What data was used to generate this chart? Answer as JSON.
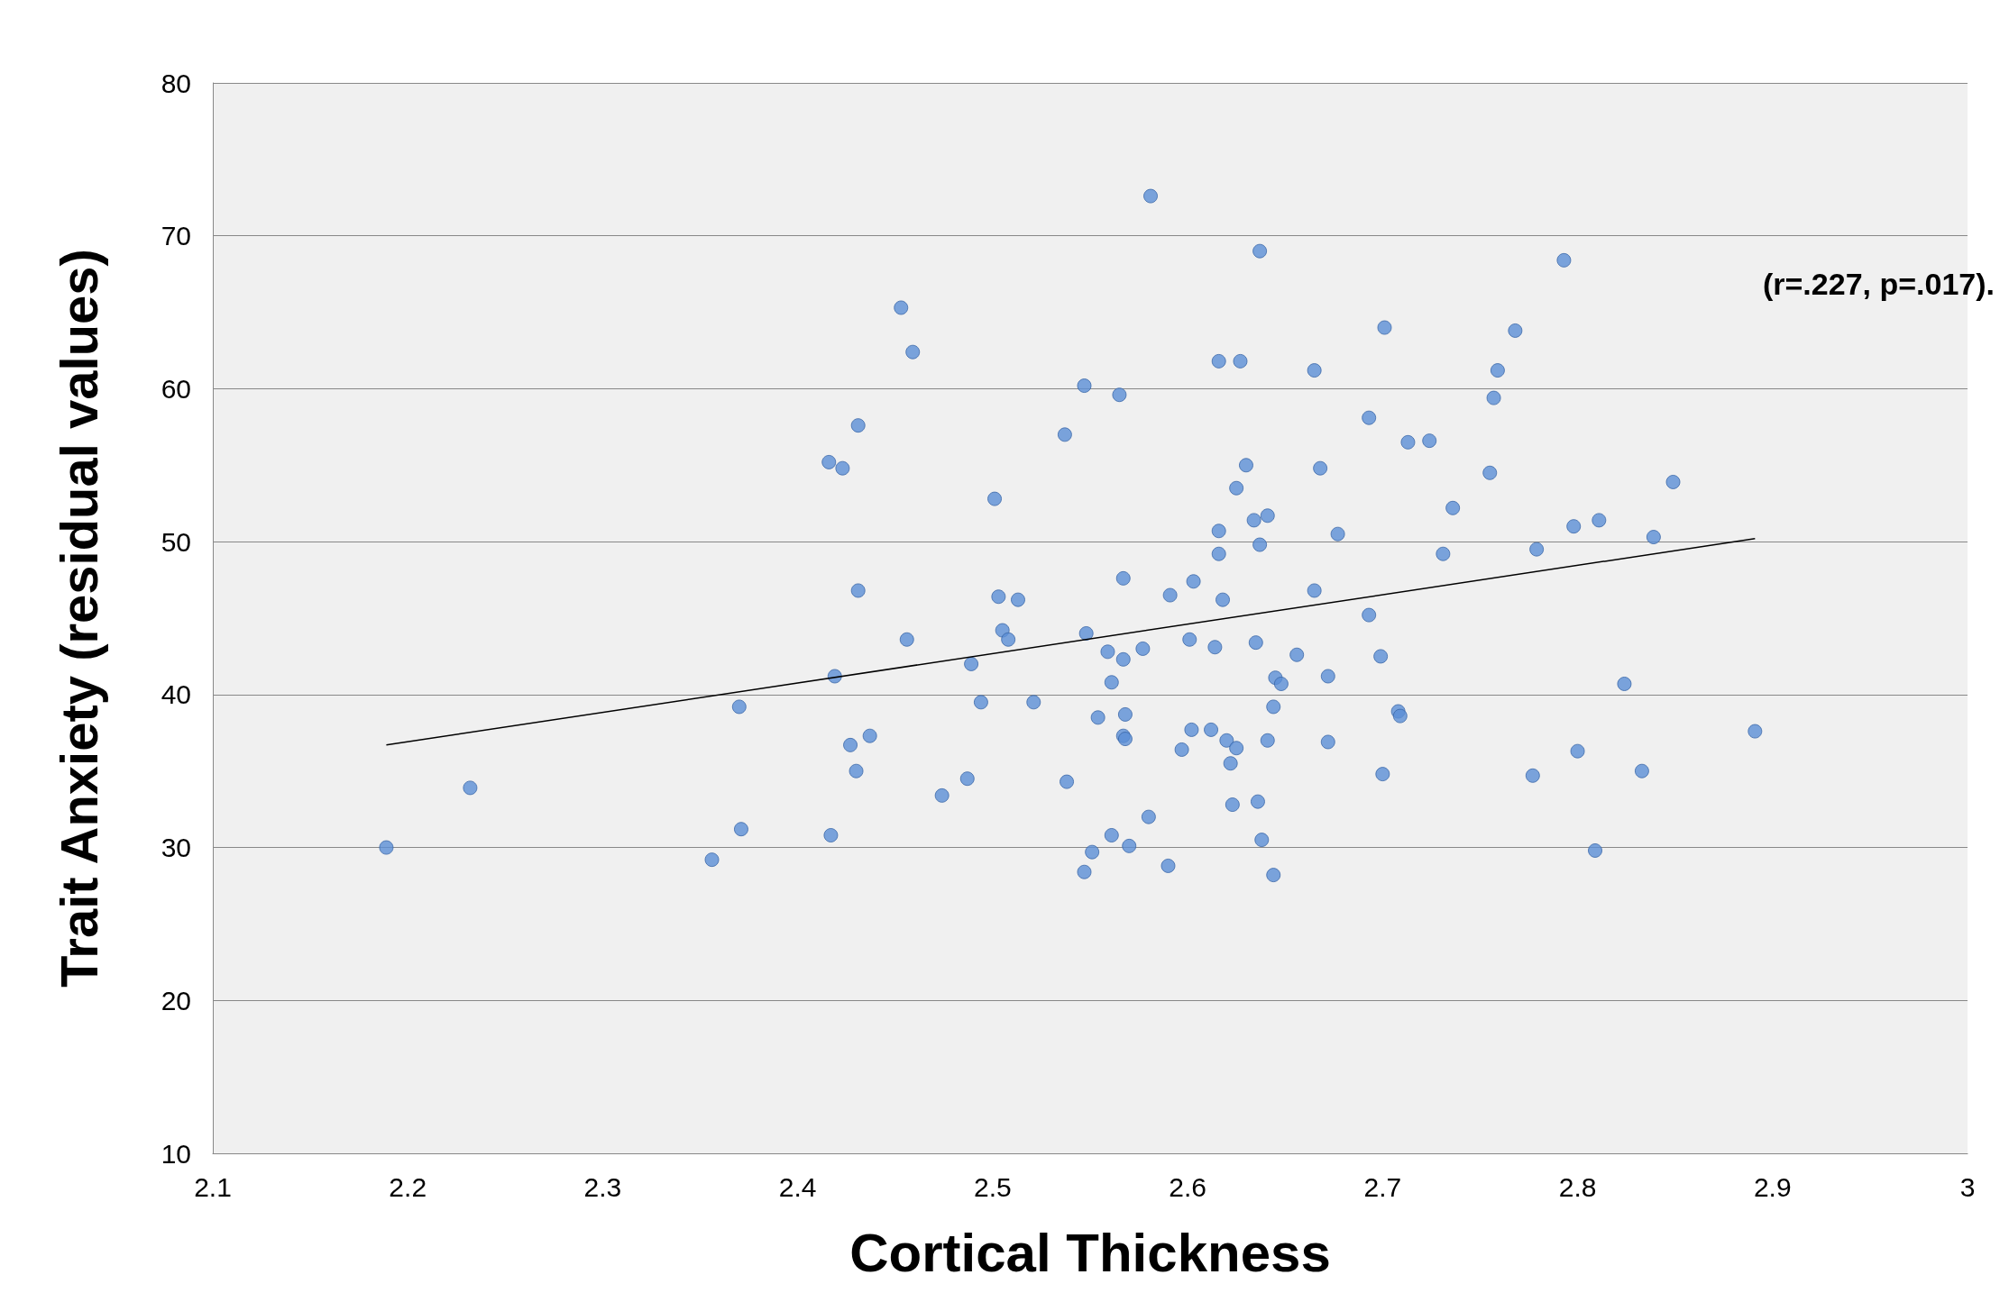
{
  "chart_data": {
    "type": "scatter",
    "xlabel": "Cortical Thickness",
    "ylabel": "Trait Anxiety (residual values)",
    "annotations": [
      "(r=.227, p=.017)."
    ],
    "xlim": [
      2.1,
      3
    ],
    "xticks": [
      2.1,
      2.2,
      2.3,
      2.4,
      2.5,
      2.6,
      2.7,
      2.8,
      2.9,
      3
    ],
    "ylim": [
      10,
      80
    ],
    "yticks": [
      10,
      20,
      30,
      40,
      50,
      60,
      70,
      80
    ],
    "grid": "y",
    "marker": "circle",
    "series": [
      {
        "color": "#5b8fd6",
        "x": [
          2.189,
          2.232,
          2.356,
          2.37,
          2.371,
          2.416,
          2.423,
          2.431,
          2.417,
          2.419,
          2.427,
          2.43,
          2.431,
          2.437,
          2.453,
          2.459,
          2.456,
          2.474,
          2.487,
          2.489,
          2.494,
          2.501,
          2.503,
          2.505,
          2.508,
          2.513,
          2.521,
          2.537,
          2.538,
          2.547,
          2.548,
          2.547,
          2.551,
          2.554,
          2.559,
          2.561,
          2.561,
          2.565,
          2.567,
          2.567,
          2.568,
          2.567,
          2.568,
          2.57,
          2.577,
          2.58,
          2.581,
          2.59,
          2.591,
          2.597,
          2.601,
          2.602,
          2.603,
          2.612,
          2.614,
          2.616,
          2.616,
          2.616,
          2.618,
          2.62,
          2.622,
          2.623,
          2.625,
          2.625,
          2.627,
          2.63,
          2.634,
          2.635,
          2.636,
          2.637,
          2.637,
          2.638,
          2.641,
          2.641,
          2.644,
          2.644,
          2.645,
          2.648,
          2.656,
          2.665,
          2.665,
          2.668,
          2.672,
          2.672,
          2.677,
          2.693,
          2.693,
          2.699,
          2.7,
          2.701,
          2.708,
          2.709,
          2.713,
          2.724,
          2.731,
          2.736,
          2.755,
          2.757,
          2.759,
          2.768,
          2.777,
          2.779,
          2.793,
          2.798,
          2.8,
          2.809,
          2.811,
          2.824,
          2.833,
          2.839,
          2.849,
          2.891
        ],
        "values": [
          30.0,
          33.9,
          29.2,
          39.2,
          31.2,
          55.2,
          54.8,
          57.6,
          30.8,
          41.2,
          36.7,
          35.0,
          46.8,
          37.3,
          65.3,
          62.4,
          43.6,
          33.4,
          34.5,
          42.0,
          39.5,
          52.8,
          46.4,
          44.2,
          43.6,
          46.2,
          39.5,
          57.0,
          34.3,
          60.2,
          44.0,
          28.4,
          29.7,
          38.5,
          42.8,
          40.8,
          30.8,
          59.6,
          47.6,
          42.3,
          38.7,
          37.3,
          37.1,
          30.1,
          43.0,
          32.0,
          72.6,
          28.8,
          46.5,
          36.4,
          43.6,
          37.7,
          47.4,
          37.7,
          43.1,
          61.8,
          50.7,
          49.2,
          46.2,
          37.0,
          35.5,
          32.8,
          36.5,
          53.5,
          61.8,
          55.0,
          51.4,
          43.4,
          33.0,
          69.0,
          49.8,
          30.5,
          51.7,
          37.0,
          28.2,
          39.2,
          41.1,
          40.7,
          42.6,
          46.8,
          61.2,
          54.8,
          36.9,
          41.2,
          50.5,
          58.1,
          45.2,
          42.5,
          34.8,
          64.0,
          38.9,
          38.6,
          56.5,
          56.6,
          49.2,
          52.2,
          54.5,
          59.4,
          61.2,
          63.8,
          34.7,
          49.5,
          68.4,
          51.0,
          36.3,
          29.8,
          51.4,
          40.7,
          35.0,
          50.3,
          53.9,
          37.6
        ]
      },
      {
        "type": "line",
        "color": "#000000",
        "marker": "none",
        "x": [
          2.189,
          2.891
        ],
        "values": [
          36.7,
          50.2
        ]
      }
    ]
  }
}
